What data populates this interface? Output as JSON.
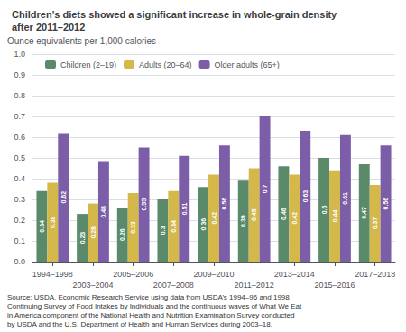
{
  "chart_data": {
    "type": "bar",
    "title": "Children’s diets showed a significant increase in whole-grain density\nafter 2011–2012",
    "ylabel": "Ounce equivalents per 1,000 calories",
    "categories": [
      "1994–1998",
      "2003–2004",
      "2005–2006",
      "2007–2008",
      "2009–2010",
      "2011–2012",
      "2013–2014",
      "2015–2016",
      "2017–2018"
    ],
    "series": [
      {
        "name": "Children (2–19)",
        "color": "#5a8a6a",
        "values": [
          0.34,
          0.23,
          0.26,
          0.3,
          0.36,
          0.39,
          0.46,
          0.5,
          0.47
        ]
      },
      {
        "name": "Adults (20–64)",
        "color": "#d4b84a",
        "values": [
          0.38,
          0.28,
          0.33,
          0.34,
          0.42,
          0.45,
          0.42,
          0.44,
          0.37
        ]
      },
      {
        "name": "Older adults (65+)",
        "color": "#7b5ea7",
        "values": [
          0.62,
          0.48,
          0.55,
          0.51,
          0.56,
          0.7,
          0.63,
          0.61,
          0.56
        ]
      }
    ],
    "ylim": [
      0,
      1.0
    ],
    "yticks": [
      {
        "value": 0.0,
        "label": "0.0"
      },
      0.1,
      0.2,
      0.3,
      0.4,
      0.5,
      0.6,
      0.7,
      0.8,
      0.9,
      {
        "value": 1.0,
        "label": "1.0"
      }
    ],
    "grid": true,
    "legend": "upper left",
    "data_labels": true,
    "annotations": [
      "Source: USDA, Economic Research Service using data from USDA’s 1994–96 and 1998\nContinuing Survey of Food Intakes by Individuals and the continuous waves of What We Eat\nin America component of the National Health and Nutrition Examination Survey conducted\nby USDA and the U.S. Department of Health and Human Services during 2003–18."
    ]
  }
}
